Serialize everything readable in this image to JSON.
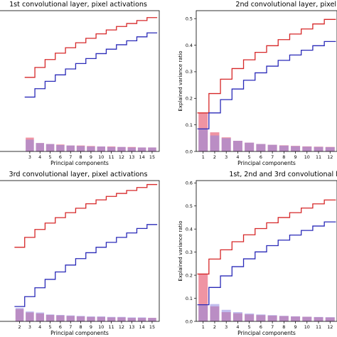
{
  "figure": {
    "colors": {
      "pca_bar_light": "#f59a9a",
      "pca_bar_strong": "#e5526b",
      "overlap_bar": "#cf4aa0",
      "bar_blue": "#8e86e0",
      "line_red": "#d62728",
      "line_blue": "#2a2ab8",
      "spine": "#000000"
    }
  },
  "chart_data": [
    {
      "type": "bar",
      "title": "1st convolutional layer, pixel activations",
      "xlabel": "Principal components",
      "ylabel": "",
      "xlim": [
        -0.2,
        15.7
      ],
      "ylim": [
        0,
        0.285
      ],
      "categories": [
        "3",
        "4",
        "5",
        "6",
        "7",
        "8",
        "9",
        "10",
        "11",
        "12",
        "13",
        "14",
        "15"
      ],
      "yticks": [],
      "series": [
        {
          "values": [
            0.028,
            0.017,
            0.015,
            0.014,
            0.012,
            0.012,
            0.011,
            0.01,
            0.01,
            0.009,
            0.009,
            0.008,
            0.008
          ]
        },
        {
          "values": [
            0.024,
            0.017,
            0.015,
            0.013,
            0.012,
            0.011,
            0.01,
            0.01,
            0.009,
            0.009,
            0.008,
            0.008,
            0.008
          ]
        }
      ],
      "cumulative": [
        {
          "values": [
            0.15,
            0.17,
            0.186,
            0.199,
            0.21,
            0.22,
            0.229,
            0.238,
            0.246,
            0.253,
            0.259,
            0.265,
            0.271
          ]
        },
        {
          "values": [
            0.11,
            0.127,
            0.142,
            0.155,
            0.167,
            0.178,
            0.188,
            0.198,
            0.207,
            0.216,
            0.224,
            0.232,
            0.24
          ]
        }
      ]
    },
    {
      "type": "bar",
      "title": "2nd convolutional layer, pixel activations",
      "xlabel": "Principal components",
      "ylabel": "Explained variance ratio",
      "xlim": [
        0.4,
        12.6
      ],
      "ylim": [
        0,
        0.53
      ],
      "categories": [
        "1",
        "2",
        "3",
        "4",
        "5",
        "6",
        "7",
        "8",
        "9",
        "10",
        "11",
        "12"
      ],
      "yticks": [
        "0.0",
        "0.1",
        "0.2",
        "0.3",
        "0.4",
        "0.5"
      ],
      "series": [
        {
          "values": [
            0.145,
            0.072,
            0.053,
            0.04,
            0.033,
            0.028,
            0.025,
            0.023,
            0.021,
            0.019,
            0.018,
            0.017
          ]
        },
        {
          "values": [
            0.085,
            0.06,
            0.05,
            0.04,
            0.033,
            0.028,
            0.025,
            0.022,
            0.02,
            0.018,
            0.017,
            0.016
          ]
        }
      ],
      "cumulative": [
        {
          "values": [
            0.145,
            0.218,
            0.272,
            0.312,
            0.345,
            0.373,
            0.398,
            0.421,
            0.442,
            0.461,
            0.48,
            0.497
          ]
        },
        {
          "values": [
            0.085,
            0.145,
            0.195,
            0.235,
            0.268,
            0.296,
            0.321,
            0.343,
            0.363,
            0.381,
            0.398,
            0.414
          ]
        }
      ]
    },
    {
      "type": "bar",
      "title": "3rd convolutional layer, pixel activations",
      "xlabel": "Principal components",
      "ylabel": "",
      "xlim": [
        -0.2,
        15.7
      ],
      "ylim": [
        0,
        0.285
      ],
      "categories": [
        "2",
        "3",
        "4",
        "5",
        "6",
        "7",
        "8",
        "9",
        "10",
        "11",
        "12",
        "13",
        "14",
        "15"
      ],
      "yticks": [],
      "series": [
        {
          "values": [
            0.025,
            0.018,
            0.016,
            0.013,
            0.012,
            0.011,
            0.01,
            0.009,
            0.009,
            0.008,
            0.008,
            0.007,
            0.007,
            0.007
          ]
        },
        {
          "values": [
            0.027,
            0.02,
            0.018,
            0.014,
            0.013,
            0.012,
            0.011,
            0.01,
            0.01,
            0.009,
            0.009,
            0.008,
            0.008,
            0.007
          ]
        }
      ],
      "cumulative": [
        {
          "values": [
            0.15,
            0.17,
            0.186,
            0.199,
            0.21,
            0.22,
            0.229,
            0.238,
            0.246,
            0.253,
            0.259,
            0.265,
            0.271,
            0.277
          ]
        },
        {
          "values": [
            0.03,
            0.05,
            0.068,
            0.085,
            0.1,
            0.114,
            0.127,
            0.139,
            0.15,
            0.16,
            0.17,
            0.179,
            0.188,
            0.196
          ]
        }
      ]
    },
    {
      "type": "bar",
      "title": "1st, 2nd and 3rd convolutional layers, pixel activations",
      "xlabel": "Principal components",
      "ylabel": "Explained variance ratio",
      "xlim": [
        0.4,
        12.6
      ],
      "ylim": [
        0,
        0.61
      ],
      "categories": [
        "1",
        "2",
        "3",
        "4",
        "5",
        "6",
        "7",
        "8",
        "9",
        "10",
        "11",
        "12"
      ],
      "yticks": [
        "0.0",
        "0.1",
        "0.2",
        "0.3",
        "0.4",
        "0.5",
        "0.6"
      ],
      "series": [
        {
          "values": [
            0.205,
            0.065,
            0.04,
            0.035,
            0.03,
            0.027,
            0.025,
            0.023,
            0.021,
            0.02,
            0.018,
            0.017
          ]
        },
        {
          "values": [
            0.072,
            0.075,
            0.05,
            0.04,
            0.034,
            0.03,
            0.027,
            0.024,
            0.022,
            0.02,
            0.019,
            0.018
          ]
        }
      ],
      "cumulative": [
        {
          "values": [
            0.205,
            0.27,
            0.31,
            0.345,
            0.375,
            0.402,
            0.427,
            0.45,
            0.471,
            0.491,
            0.509,
            0.526
          ]
        },
        {
          "values": [
            0.072,
            0.147,
            0.197,
            0.237,
            0.271,
            0.301,
            0.328,
            0.352,
            0.374,
            0.394,
            0.413,
            0.431
          ]
        }
      ]
    }
  ]
}
